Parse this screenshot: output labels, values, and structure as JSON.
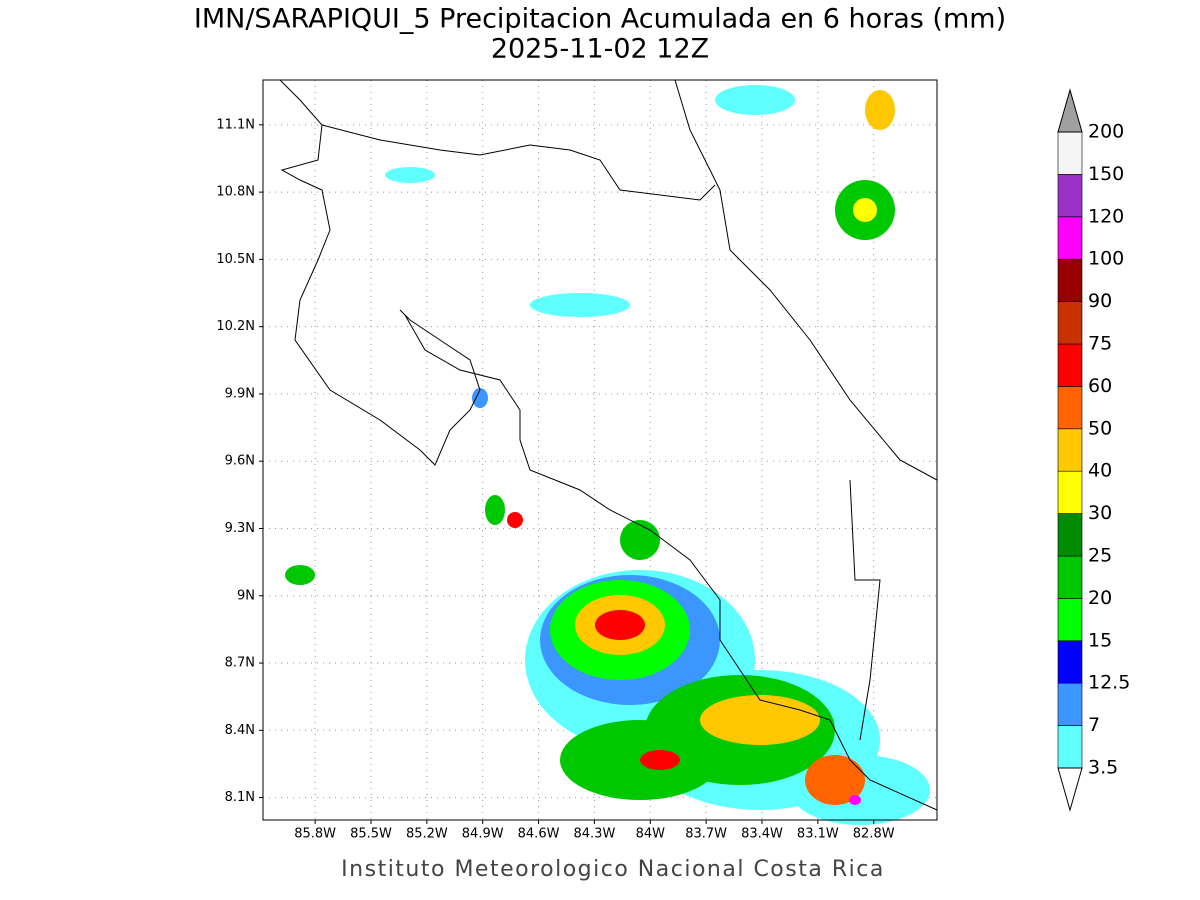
{
  "header": {
    "title": "IMN/SARAPIQUI_5 Precipitacion Acumulada en 6 horas (mm)",
    "subtitle": "2025-11-02 12Z"
  },
  "map": {
    "xlim": [
      -86.08,
      -82.46
    ],
    "ylim": [
      8.0,
      11.3
    ],
    "xticks": [
      {
        "value": -85.8,
        "label": "85.8W"
      },
      {
        "value": -85.5,
        "label": "85.5W"
      },
      {
        "value": -85.2,
        "label": "85.2W"
      },
      {
        "value": -84.9,
        "label": "84.9W"
      },
      {
        "value": -84.6,
        "label": "84.6W"
      },
      {
        "value": -84.3,
        "label": "84.3W"
      },
      {
        "value": -84.0,
        "label": "84W"
      },
      {
        "value": -83.7,
        "label": "83.7W"
      },
      {
        "value": -83.4,
        "label": "83.4W"
      },
      {
        "value": -83.1,
        "label": "83.1W"
      },
      {
        "value": -82.8,
        "label": "82.8W"
      }
    ],
    "yticks": [
      {
        "value": 8.1,
        "label": "8.1N"
      },
      {
        "value": 8.4,
        "label": "8.4N"
      },
      {
        "value": 8.7,
        "label": "8.7N"
      },
      {
        "value": 9.0,
        "label": "9N"
      },
      {
        "value": 9.3,
        "label": "9.3N"
      },
      {
        "value": 9.6,
        "label": "9.6N"
      },
      {
        "value": 9.9,
        "label": "9.9N"
      },
      {
        "value": 10.2,
        "label": "10.2N"
      },
      {
        "value": 10.5,
        "label": "10.5N"
      },
      {
        "value": 10.8,
        "label": "10.8N"
      },
      {
        "value": 11.1,
        "label": "11.1N"
      }
    ],
    "grid": true
  },
  "colorbar": {
    "levels": [
      3.5,
      7,
      12.5,
      15,
      20,
      25,
      30,
      40,
      50,
      60,
      75,
      90,
      100,
      120,
      150,
      200
    ],
    "colors": [
      "#60ffff",
      "#3c96ff",
      "#0000ff",
      "#00ff00",
      "#00c800",
      "#008c00",
      "#ffff00",
      "#ffc800",
      "#ff6400",
      "#ff0000",
      "#c83200",
      "#960000",
      "#ff00ff",
      "#9b32c8",
      "#f5f5f5"
    ],
    "under_color": "#ffffff",
    "over_color": "#a0a0a0"
  },
  "footer": "Instituto Meteorologico Nacional Costa Rica"
}
